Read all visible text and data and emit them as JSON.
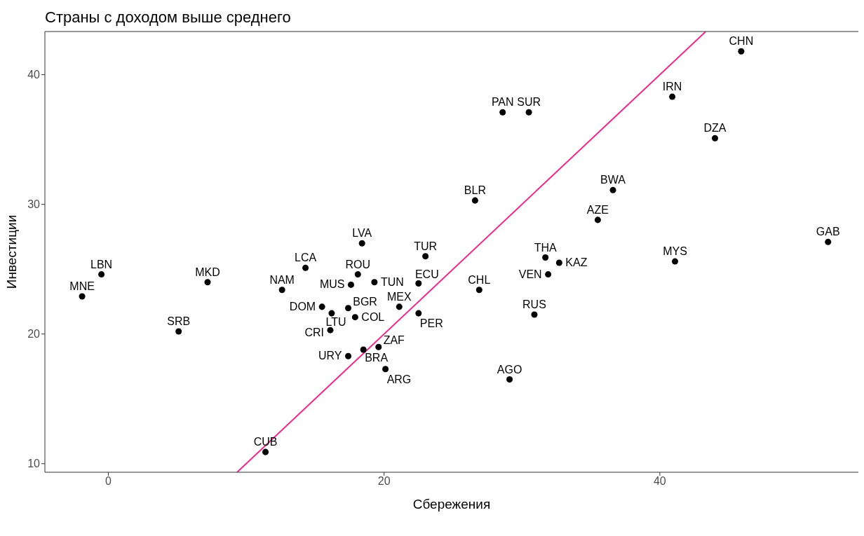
{
  "chart_data": {
    "type": "scatter",
    "title": "Страны с доходом выше среднего",
    "xlabel": "Сбережения",
    "ylabel": "Инвестиции",
    "xlim": [
      -4.6,
      54.4
    ],
    "xticks": [
      0,
      20,
      40
    ],
    "ylim": [
      9.34,
      43.33
    ],
    "yticks": [
      10,
      20,
      30,
      40
    ],
    "grid": false,
    "legend": false,
    "marker": "circle",
    "x": [
      45.9,
      40.9,
      44.0,
      28.6,
      30.5,
      36.6,
      26.6,
      35.5,
      52.2,
      41.1,
      18.4,
      23.0,
      31.7,
      32.7,
      14.3,
      -0.5,
      18.1,
      31.9,
      7.2,
      19.3,
      22.5,
      17.6,
      26.9,
      12.6,
      -1.9,
      15.5,
      21.1,
      17.4,
      16.2,
      22.5,
      30.9,
      17.9,
      16.1,
      5.1,
      19.6,
      18.5,
      17.4,
      20.1,
      29.1,
      11.4
    ],
    "series": [
      {
        "color": "#000000",
        "values": [
          41.8,
          38.3,
          35.1,
          37.1,
          37.1,
          31.1,
          30.3,
          28.8,
          27.1,
          25.6,
          27.0,
          26.0,
          25.9,
          25.5,
          25.1,
          24.6,
          24.6,
          24.6,
          24.0,
          24.0,
          23.9,
          23.8,
          23.4,
          23.4,
          22.9,
          22.1,
          22.1,
          22.0,
          21.6,
          21.6,
          21.5,
          21.3,
          20.3,
          20.2,
          19.0,
          18.8,
          18.3,
          17.3,
          16.5,
          10.9
        ]
      },
      {
        "type": "line",
        "color": "#f0288c",
        "x": [
          9.34,
          43.33
        ],
        "values": [
          9.34,
          43.33
        ],
        "marker": "none",
        "line_style": "solid"
      }
    ],
    "annotations": [
      {
        "text": "CHN",
        "x": 45.9,
        "y": 41.8
      },
      {
        "text": "IRN",
        "x": 40.9,
        "y": 38.3
      },
      {
        "text": "DZA",
        "x": 44.0,
        "y": 35.1
      },
      {
        "text": "PAN",
        "x": 28.6,
        "y": 37.1
      },
      {
        "text": "SUR",
        "x": 30.5,
        "y": 37.1
      },
      {
        "text": "BWA",
        "x": 36.6,
        "y": 31.1
      },
      {
        "text": "BLR",
        "x": 26.6,
        "y": 30.3
      },
      {
        "text": "AZE",
        "x": 35.5,
        "y": 28.8
      },
      {
        "text": "GAB",
        "x": 52.2,
        "y": 27.1
      },
      {
        "text": "MYS",
        "x": 41.1,
        "y": 25.6
      },
      {
        "text": "LVA",
        "x": 18.4,
        "y": 27.0
      },
      {
        "text": "TUR",
        "x": 23.0,
        "y": 26.0
      },
      {
        "text": "THA",
        "x": 31.7,
        "y": 25.9
      },
      {
        "text": "KAZ",
        "x": 32.7,
        "y": 25.5
      },
      {
        "text": "LCA",
        "x": 14.3,
        "y": 25.1
      },
      {
        "text": "LBN",
        "x": -0.5,
        "y": 24.6
      },
      {
        "text": "ROU",
        "x": 18.1,
        "y": 24.6
      },
      {
        "text": "VEN",
        "x": 31.9,
        "y": 24.6
      },
      {
        "text": "MKD",
        "x": 7.2,
        "y": 24.0
      },
      {
        "text": "TUN",
        "x": 19.3,
        "y": 24.0
      },
      {
        "text": "ECU",
        "x": 22.5,
        "y": 23.9
      },
      {
        "text": "MUS",
        "x": 17.6,
        "y": 23.8
      },
      {
        "text": "CHL",
        "x": 26.9,
        "y": 23.4
      },
      {
        "text": "NAM",
        "x": 12.6,
        "y": 23.4
      },
      {
        "text": "MNE",
        "x": -1.9,
        "y": 22.9
      },
      {
        "text": "DOM",
        "x": 15.5,
        "y": 22.1
      },
      {
        "text": "MEX",
        "x": 21.1,
        "y": 22.1
      },
      {
        "text": "BGR",
        "x": 17.4,
        "y": 22.0
      },
      {
        "text": "LTU",
        "x": 16.2,
        "y": 21.6
      },
      {
        "text": "PER",
        "x": 22.5,
        "y": 21.6
      },
      {
        "text": "RUS",
        "x": 30.9,
        "y": 21.5
      },
      {
        "text": "COL",
        "x": 17.9,
        "y": 21.3
      },
      {
        "text": "CRI",
        "x": 16.1,
        "y": 20.3
      },
      {
        "text": "SRB",
        "x": 5.1,
        "y": 20.2
      },
      {
        "text": "ZAF",
        "x": 19.6,
        "y": 19.0
      },
      {
        "text": "BRA",
        "x": 18.5,
        "y": 18.8
      },
      {
        "text": "URY",
        "x": 17.4,
        "y": 18.3
      },
      {
        "text": "ARG",
        "x": 20.1,
        "y": 17.3
      },
      {
        "text": "AGO",
        "x": 29.1,
        "y": 16.5
      },
      {
        "text": "CUB",
        "x": 11.4,
        "y": 10.9
      }
    ]
  }
}
